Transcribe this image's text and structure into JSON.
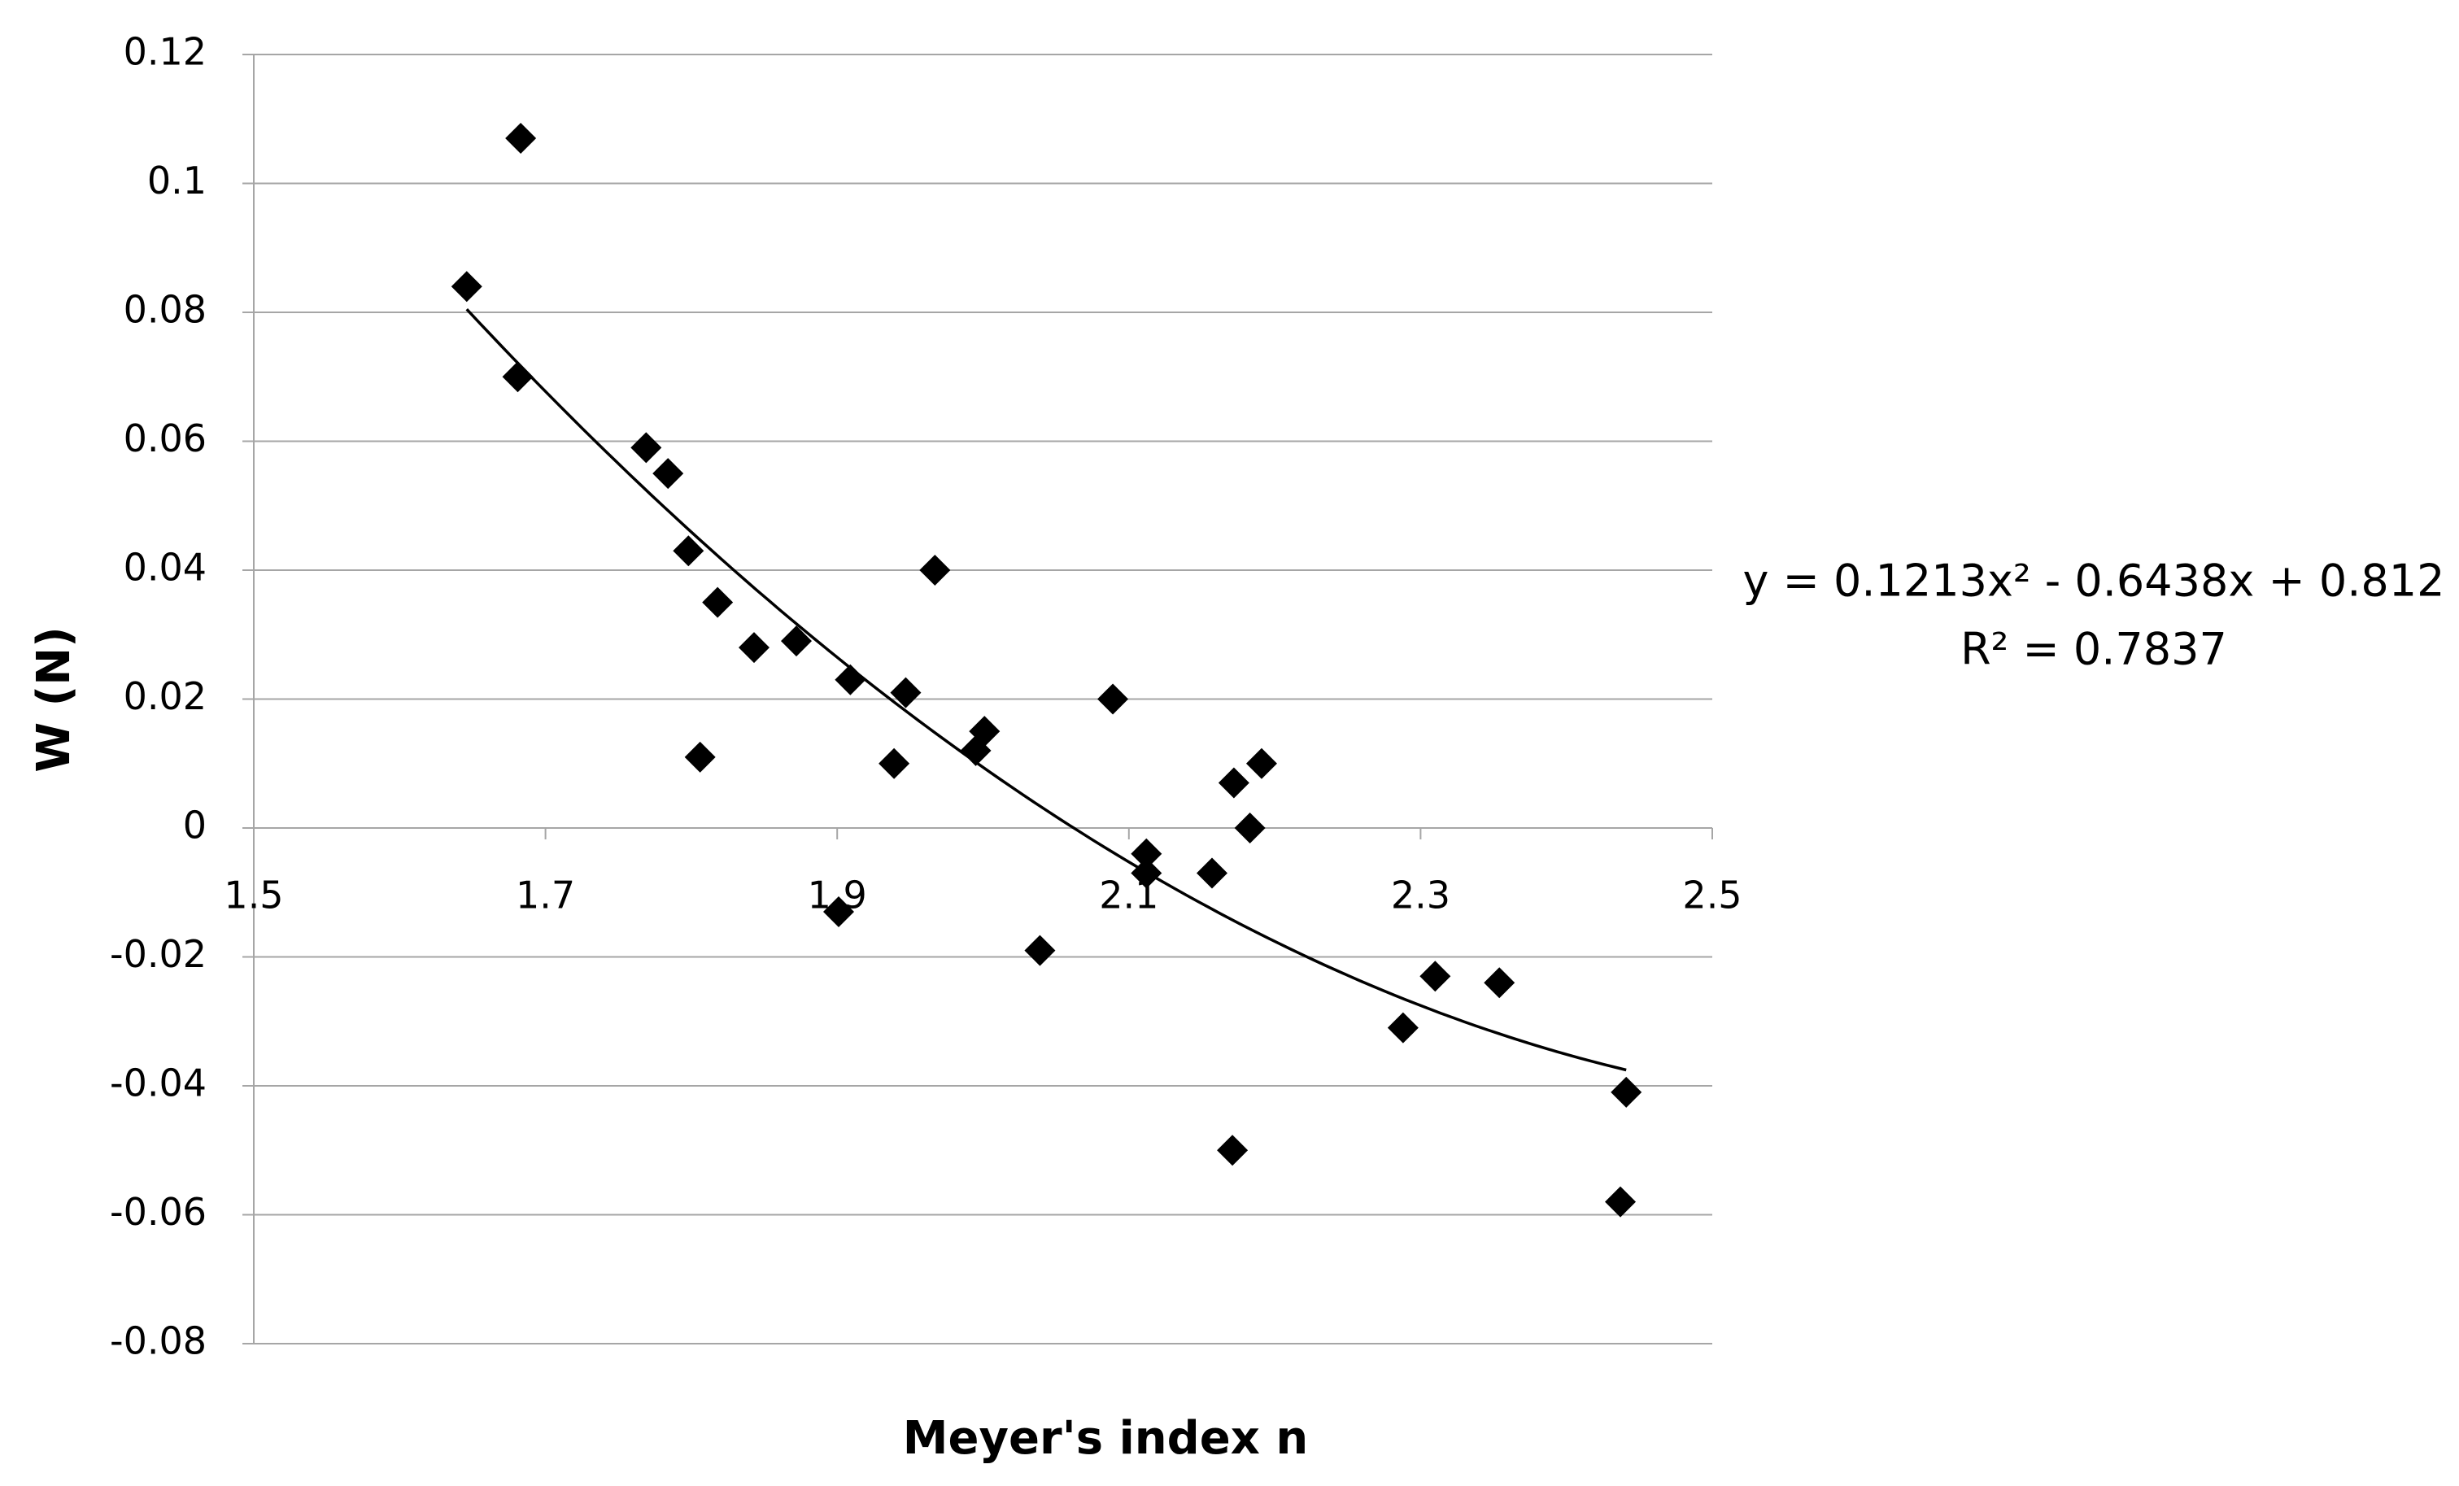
{
  "chart_data": {
    "type": "scatter",
    "x_label": "Meyer's index n",
    "y_label": "W (N)",
    "equation_label": "y = 0.1213x² - 0.6438x + 0.812",
    "r_squared_label": "R² = 0.7837",
    "series": [
      {
        "name": "W",
        "color": "#000000",
        "x": [
          1.646,
          1.683,
          1.681,
          1.769,
          1.784,
          1.798,
          1.818,
          1.806,
          1.843,
          1.872,
          1.909,
          1.901,
          1.939,
          1.947,
          1.967,
          1.995,
          2.001,
          2.039,
          2.089,
          2.112,
          2.112,
          2.157,
          2.172,
          2.183,
          2.191,
          2.171,
          2.288,
          2.31,
          2.354,
          2.441,
          2.437
        ],
        "values": [
          0.084,
          0.107,
          0.07,
          0.059,
          0.055,
          0.043,
          0.035,
          0.011,
          0.028,
          0.029,
          0.023,
          -0.013,
          0.01,
          0.021,
          0.04,
          0.012,
          0.015,
          -0.019,
          0.02,
          -0.004,
          -0.007,
          -0.007,
          0.007,
          0.0,
          0.01,
          -0.05,
          -0.031,
          -0.023,
          -0.024,
          -0.041,
          -0.058
        ]
      }
    ],
    "trendline": {
      "type": "polynomial",
      "order": 2,
      "color": "#000000"
    },
    "xlim": [
      1.5,
      2.5
    ],
    "xticks": [
      1.5,
      1.7,
      1.9,
      2.1,
      2.3,
      2.5
    ],
    "ylim": [
      -0.08,
      0.12
    ],
    "yticks": [
      -0.08,
      -0.06,
      -0.04,
      -0.02,
      0,
      0.02,
      0.04,
      0.06,
      0.08,
      0.1,
      0.12
    ],
    "grid": true
  }
}
